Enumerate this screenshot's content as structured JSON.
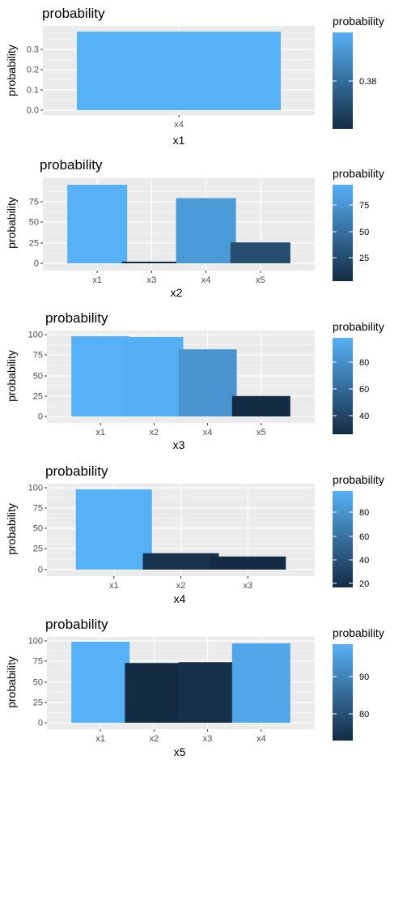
{
  "chart_data": [
    {
      "type": "bar",
      "title": "probability",
      "xlabel": "x1",
      "ylabel": "probability",
      "categories": [
        "x4"
      ],
      "values": [
        0.38
      ],
      "ylim": [
        0,
        0.38
      ],
      "yticks": [
        "0.0",
        "0.1",
        "0.2",
        "0.3"
      ],
      "grid": true,
      "legend": {
        "title": "probability",
        "position": "right",
        "ticks": [
          "0.38"
        ]
      }
    },
    {
      "type": "bar",
      "title": "probability",
      "xlabel": "x2",
      "ylabel": "probability",
      "categories": [
        "x1",
        "x3",
        "x4",
        "x5"
      ],
      "values": [
        94,
        2,
        78,
        25
      ],
      "ylim": [
        0,
        94
      ],
      "yticks": [
        "0",
        "25",
        "50",
        "75"
      ],
      "grid": true,
      "legend": {
        "title": "probability",
        "position": "right",
        "ticks": [
          "75",
          "50",
          "25"
        ]
      }
    },
    {
      "type": "bar",
      "title": "probability",
      "xlabel": "x3",
      "ylabel": "probability",
      "categories": [
        "x1",
        "x2",
        "x4",
        "x5"
      ],
      "values": [
        98,
        97,
        82,
        25
      ],
      "ylim": [
        0,
        100
      ],
      "yticks": [
        "0",
        "25",
        "50",
        "75",
        "100"
      ],
      "grid": true,
      "legend": {
        "title": "probability",
        "position": "right",
        "ticks": [
          "80",
          "60",
          "40"
        ]
      }
    },
    {
      "type": "bar",
      "title": "probability",
      "xlabel": "x4",
      "ylabel": "probability",
      "categories": [
        "x1",
        "x2",
        "x3"
      ],
      "values": [
        98,
        20,
        16
      ],
      "ylim": [
        0,
        100
      ],
      "yticks": [
        "0",
        "25",
        "50",
        "75",
        "100"
      ],
      "grid": true,
      "legend": {
        "title": "probability",
        "position": "right",
        "ticks": [
          "80",
          "60",
          "40",
          "20"
        ]
      }
    },
    {
      "type": "bar",
      "title": "probability",
      "xlabel": "x5",
      "ylabel": "probability",
      "categories": [
        "x1",
        "x2",
        "x3",
        "x4"
      ],
      "values": [
        99,
        73,
        74,
        97
      ],
      "ylim": [
        0,
        100
      ],
      "yticks": [
        "0",
        "25",
        "50",
        "75",
        "100"
      ],
      "grid": true,
      "legend": {
        "title": "probability",
        "position": "right",
        "ticks": [
          "90",
          "80"
        ]
      }
    }
  ],
  "colors": {
    "panel_bg": "#ebebeb",
    "grid": "#ffffff",
    "low": "#132b43",
    "high": "#56b1f7",
    "single": "#336a98",
    "text": "#000000",
    "tick_text": "#4d4d4d"
  }
}
